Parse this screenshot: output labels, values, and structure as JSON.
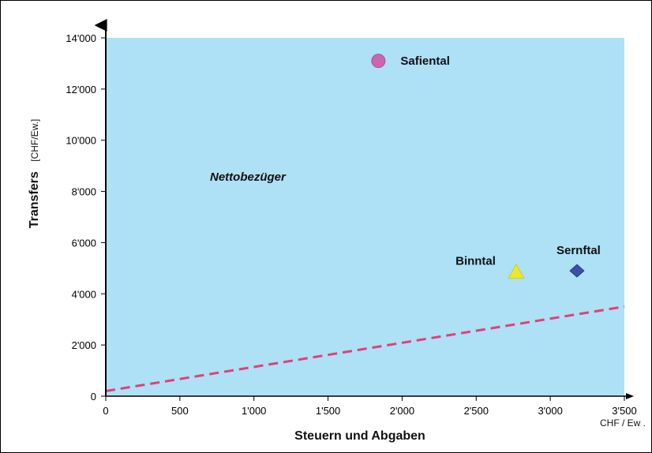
{
  "chart_data": {
    "type": "scatter",
    "xlabel": "Steuern und Abgaben",
    "x_unit": "CHF / Ew .",
    "ylabel_main": "Transfers",
    "ylabel_unit": "[CHF/Ew.]",
    "xlim": [
      0,
      3500
    ],
    "ylim": [
      0,
      14000
    ],
    "x_ticks": [
      0,
      500,
      1000,
      1500,
      2000,
      2500,
      3000,
      3500
    ],
    "x_tick_labels": [
      "0",
      "500",
      "1'000",
      "1'500",
      "2'000",
      "2'500",
      "3'000",
      "3'500"
    ],
    "y_ticks": [
      0,
      2000,
      4000,
      6000,
      8000,
      10000,
      12000,
      14000
    ],
    "y_tick_labels": [
      "0",
      "2'000",
      "4'000",
      "6'000",
      "8'000",
      "10'000",
      "12'000",
      "14'000"
    ],
    "region_label": "Nettobezüger",
    "points": [
      {
        "name": "Safiental",
        "x": 1840,
        "y": 13100,
        "marker": "circle",
        "color": "#cc66b0"
      },
      {
        "name": "Binntal",
        "x": 2770,
        "y": 4850,
        "marker": "triangle",
        "color": "#e8e830"
      },
      {
        "name": "Sernftal",
        "x": 3180,
        "y": 4900,
        "marker": "diamond",
        "color": "#3a50a8"
      }
    ],
    "reference_line": {
      "style": "dashed",
      "color": "#e0407a",
      "x": [
        0,
        3500
      ],
      "y": [
        200,
        3500
      ]
    },
    "colors": {
      "plot_background": "#aee0f6",
      "axis": "#000000"
    }
  }
}
